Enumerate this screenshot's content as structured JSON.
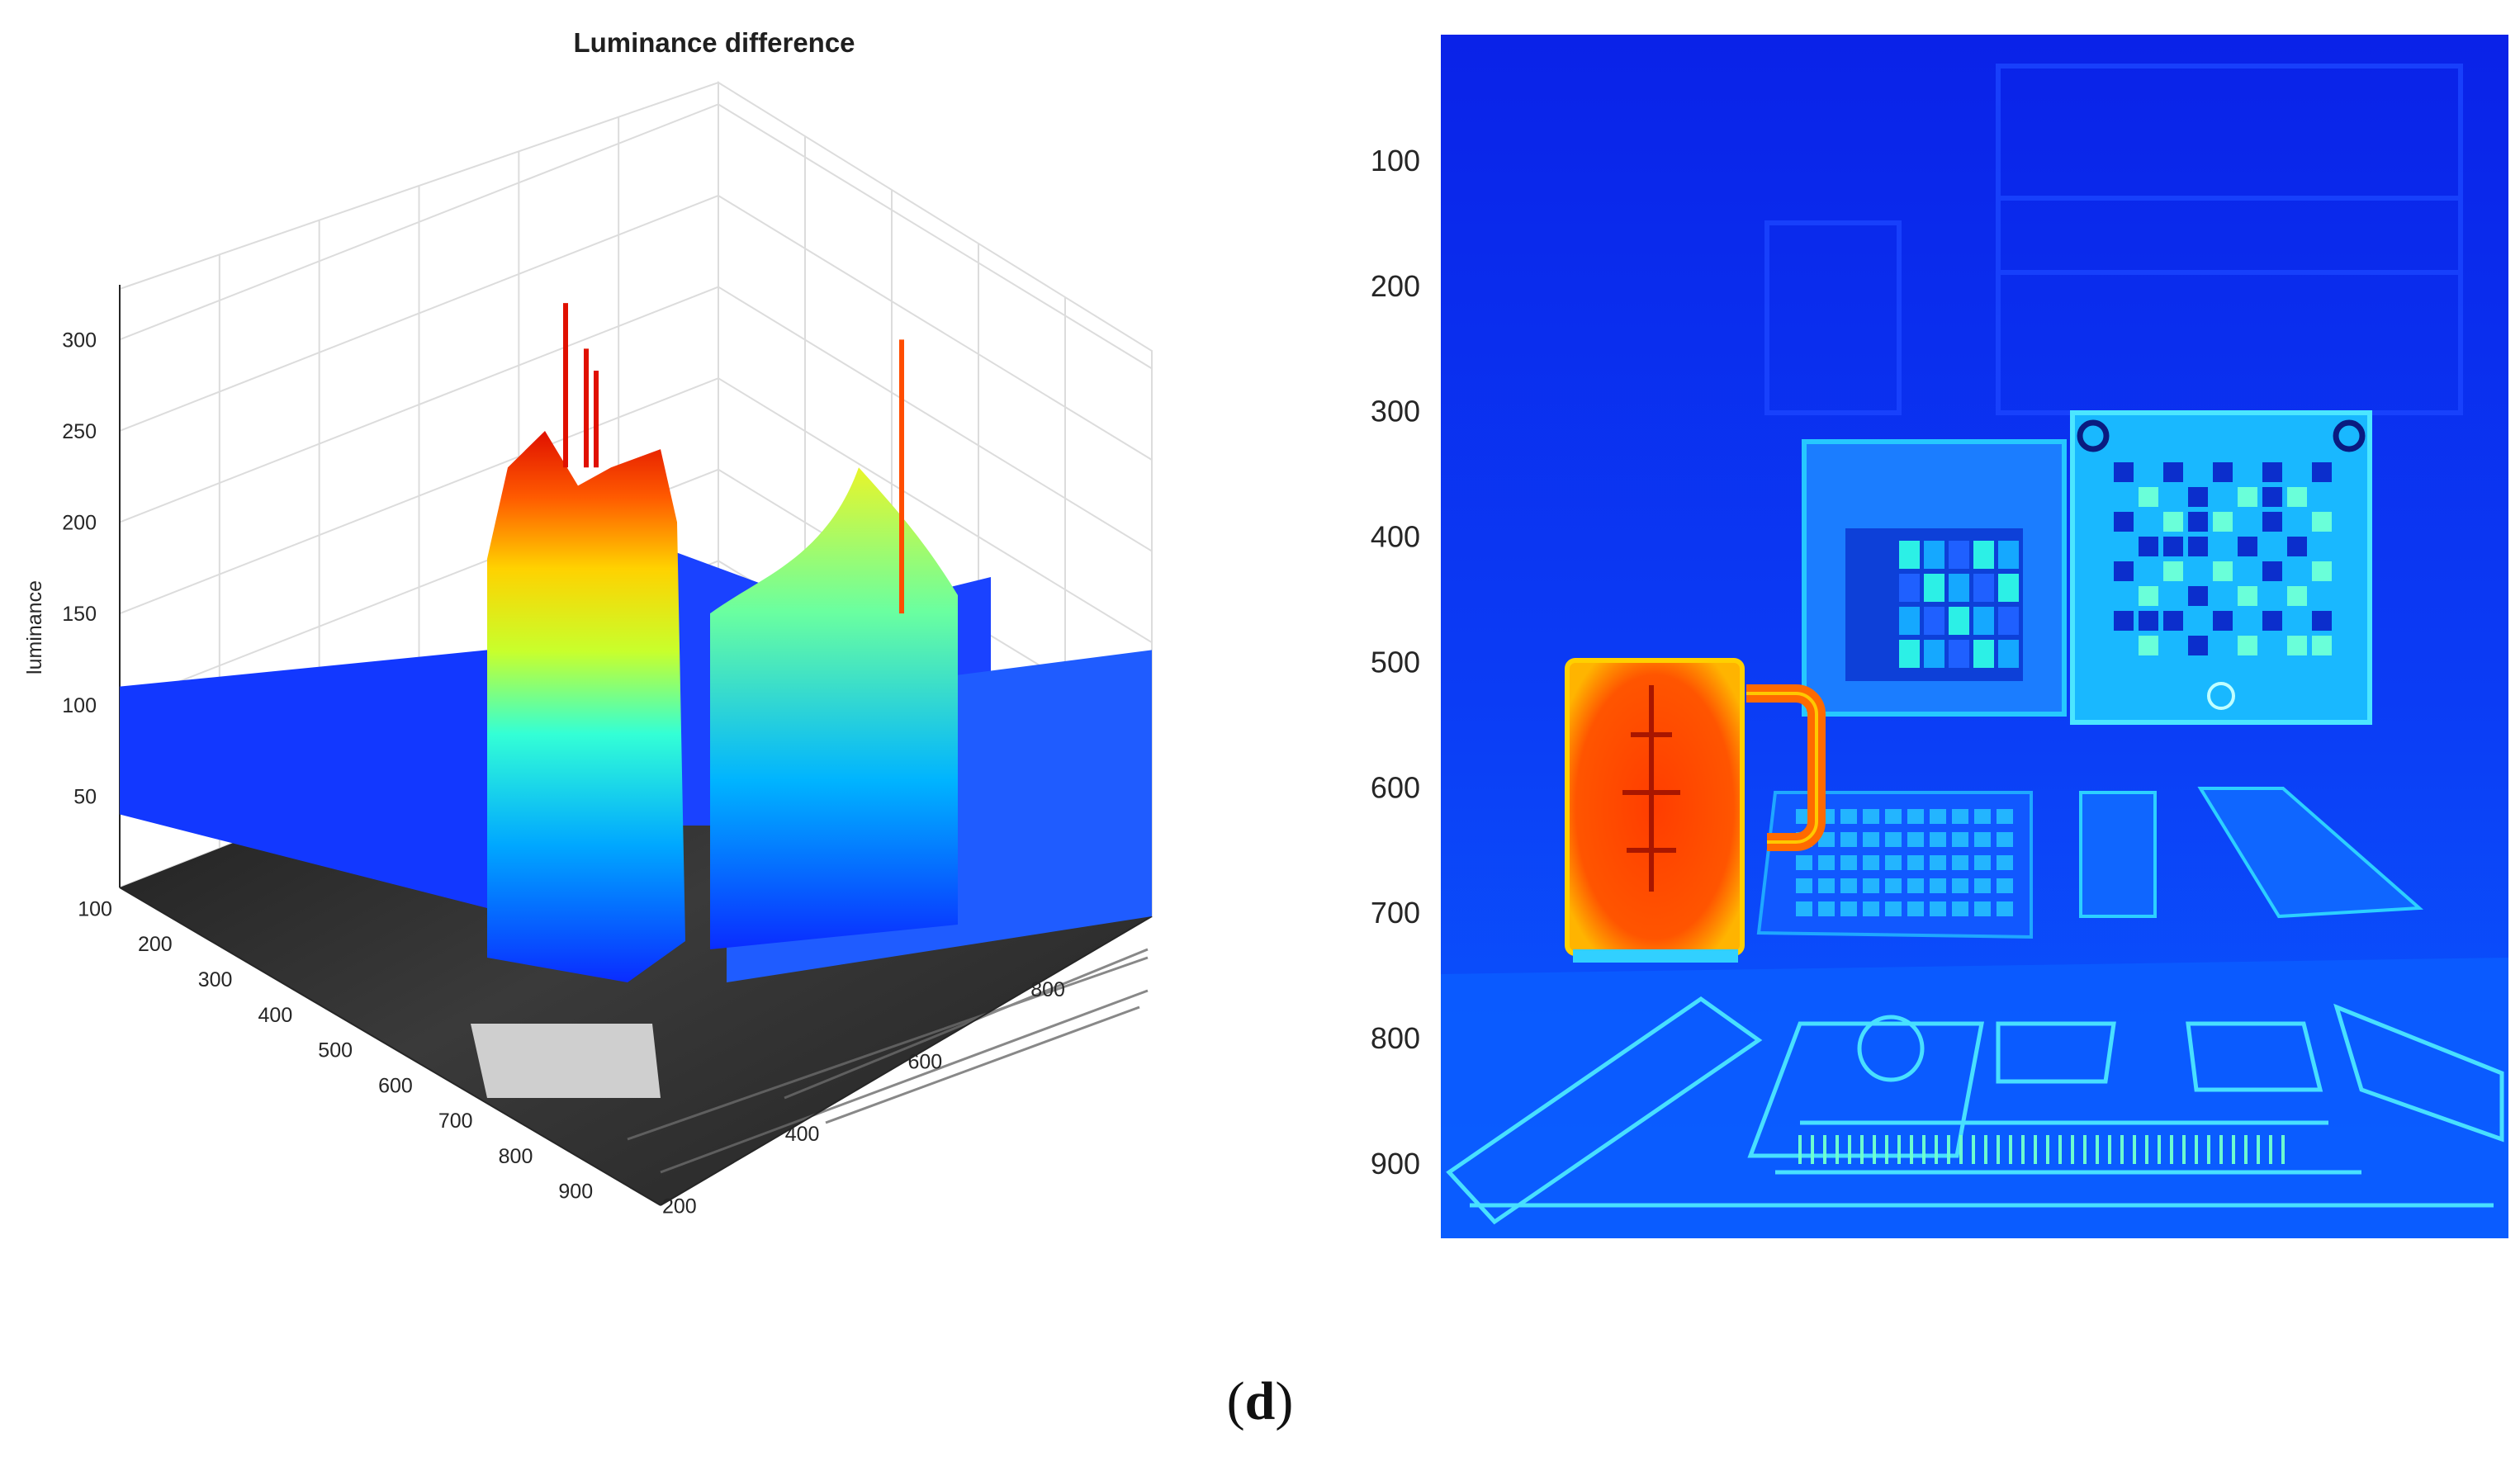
{
  "chart_data": [
    {
      "type": "surface3d",
      "title": "Luminance difference",
      "zlabel": "luminance",
      "x_ticks": [
        100,
        200,
        300,
        400,
        500,
        600,
        700,
        800,
        900
      ],
      "y_ticks": [
        200,
        400,
        600,
        800
      ],
      "z_ticks": [
        50,
        100,
        150,
        200,
        250,
        300
      ],
      "zlim": [
        0,
        330
      ],
      "grid": true,
      "colormap": "jet",
      "baseline_luminance": 110,
      "features": [
        {
          "region": "mug",
          "peak_luminance": 250,
          "spikes_to": 320
        },
        {
          "region": "display",
          "peak_luminance": 230,
          "spikes_to": 300
        },
        {
          "region": "test chart",
          "luminance_range": [
            70,
            180
          ]
        }
      ]
    },
    {
      "type": "heatmap",
      "colormap": "jet",
      "y_ticks": [
        100,
        200,
        300,
        400,
        500,
        600,
        700,
        800,
        900
      ],
      "regions": [
        {
          "name": "mug",
          "level": "high"
        },
        {
          "name": "monitor",
          "level": "medium"
        },
        {
          "name": "tablet",
          "level": "medium"
        },
        {
          "name": "keyboard",
          "level": "low-medium"
        },
        {
          "name": "test chart",
          "level": "low-medium"
        },
        {
          "name": "background",
          "level": "low"
        }
      ]
    }
  ],
  "caption": {
    "open": "(",
    "letter": "d",
    "close": ")"
  }
}
